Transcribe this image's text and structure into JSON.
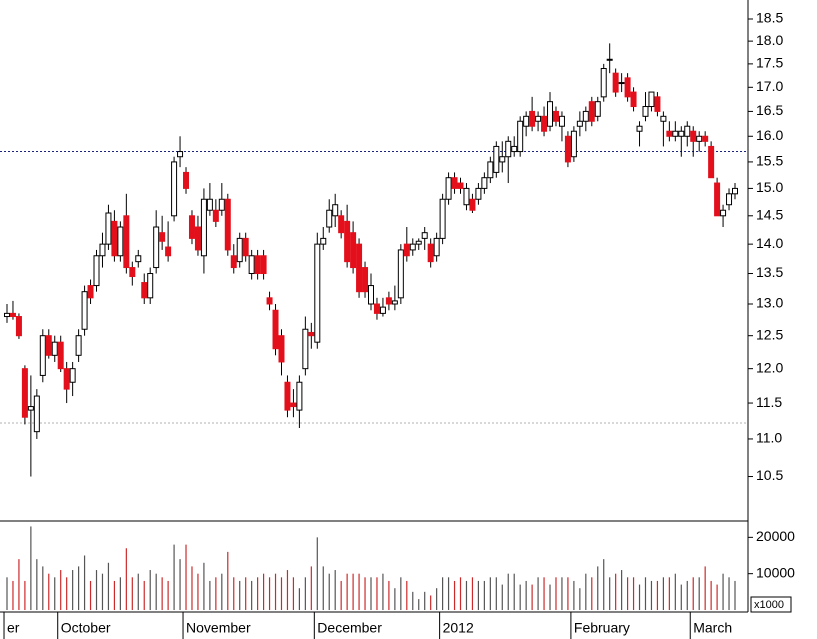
{
  "chart_data": {
    "type": "candlestick",
    "categories": [
      "er",
      null,
      null,
      null,
      null,
      null,
      null,
      null,
      null,
      "October",
      null,
      null,
      null,
      null,
      null,
      null,
      null,
      null,
      null,
      null,
      null,
      null,
      null,
      null,
      null,
      null,
      null,
      null,
      null,
      null,
      "November",
      null,
      null,
      null,
      null,
      null,
      null,
      null,
      null,
      null,
      null,
      null,
      null,
      null,
      null,
      null,
      null,
      null,
      null,
      null,
      null,
      null,
      "December",
      null,
      null,
      null,
      null,
      null,
      null,
      null,
      null,
      null,
      null,
      null,
      null,
      null,
      null,
      null,
      null,
      null,
      null,
      null,
      null,
      "2012",
      null,
      null,
      null,
      null,
      null,
      null,
      null,
      null,
      null,
      null,
      null,
      null,
      null,
      null,
      null,
      null,
      null,
      null,
      null,
      null,
      null,
      "February",
      null,
      null,
      null,
      null,
      null,
      null,
      null,
      null,
      null,
      null,
      null,
      null,
      null,
      null,
      null,
      null,
      null,
      null,
      null,
      "March",
      null,
      null,
      null,
      null,
      null,
      null,
      null
    ],
    "ohlc": [
      [
        12.8,
        13.0,
        12.7,
        12.85
      ],
      [
        12.85,
        13.05,
        12.75,
        12.8
      ],
      [
        12.8,
        12.85,
        12.45,
        12.5
      ],
      [
        12.0,
        12.05,
        11.2,
        11.3
      ],
      [
        11.4,
        11.9,
        10.5,
        11.45
      ],
      [
        11.1,
        11.7,
        11.0,
        11.6
      ],
      [
        11.9,
        12.6,
        11.8,
        12.5
      ],
      [
        12.5,
        12.6,
        12.15,
        12.2
      ],
      [
        12.2,
        12.5,
        12.1,
        12.4
      ],
      [
        12.4,
        12.5,
        11.95,
        12.0
      ],
      [
        12.0,
        12.1,
        11.5,
        11.7
      ],
      [
        11.8,
        12.1,
        11.6,
        12.0
      ],
      [
        12.2,
        12.6,
        12.1,
        12.5
      ],
      [
        12.6,
        13.3,
        12.5,
        13.2
      ],
      [
        13.3,
        13.4,
        13.0,
        13.1
      ],
      [
        13.3,
        13.9,
        13.2,
        13.8
      ],
      [
        13.8,
        14.2,
        13.6,
        14.0
      ],
      [
        14.0,
        14.7,
        13.9,
        14.55
      ],
      [
        14.4,
        14.6,
        13.7,
        13.8
      ],
      [
        13.8,
        14.4,
        13.7,
        14.3
      ],
      [
        14.5,
        14.9,
        13.5,
        13.6
      ],
      [
        13.6,
        13.7,
        13.3,
        13.45
      ],
      [
        13.7,
        13.9,
        13.6,
        13.8
      ],
      [
        13.35,
        13.5,
        13.0,
        13.1
      ],
      [
        13.1,
        13.6,
        13.0,
        13.5
      ],
      [
        13.6,
        14.6,
        13.5,
        14.3
      ],
      [
        14.2,
        14.5,
        13.9,
        14.05
      ],
      [
        13.95,
        14.4,
        13.7,
        13.8
      ],
      [
        14.5,
        15.6,
        14.4,
        15.5
      ],
      [
        15.6,
        16.0,
        15.4,
        15.7
      ],
      [
        15.3,
        15.4,
        14.9,
        15.0
      ],
      [
        14.5,
        14.6,
        14.0,
        14.1
      ],
      [
        14.3,
        14.5,
        13.8,
        13.9
      ],
      [
        13.8,
        15.0,
        13.5,
        14.8
      ],
      [
        14.6,
        15.1,
        14.5,
        14.8
      ],
      [
        14.6,
        14.8,
        14.3,
        14.4
      ],
      [
        14.6,
        15.1,
        14.5,
        14.8
      ],
      [
        14.8,
        14.9,
        13.8,
        13.9
      ],
      [
        13.8,
        14.0,
        13.5,
        13.6
      ],
      [
        13.7,
        14.2,
        13.6,
        14.1
      ],
      [
        14.1,
        14.2,
        13.7,
        13.8
      ],
      [
        13.5,
        13.9,
        13.4,
        13.8
      ],
      [
        13.8,
        13.9,
        13.4,
        13.5
      ],
      [
        13.8,
        13.9,
        13.4,
        13.5
      ],
      [
        13.1,
        13.2,
        12.9,
        13.0
      ],
      [
        12.9,
        13.0,
        12.2,
        12.3
      ],
      [
        12.5,
        12.6,
        11.9,
        12.1
      ],
      [
        11.8,
        11.9,
        11.3,
        11.4
      ],
      [
        11.5,
        11.7,
        11.3,
        11.45
      ],
      [
        11.4,
        11.9,
        11.15,
        11.8
      ],
      [
        12.0,
        12.8,
        11.9,
        12.6
      ],
      [
        12.55,
        12.7,
        12.3,
        12.5
      ],
      [
        12.4,
        14.2,
        12.3,
        14.0
      ],
      [
        14.0,
        14.3,
        13.9,
        14.1
      ],
      [
        14.3,
        14.8,
        14.2,
        14.6
      ],
      [
        14.5,
        14.9,
        14.3,
        14.7
      ],
      [
        14.5,
        14.6,
        14.1,
        14.2
      ],
      [
        14.4,
        14.7,
        13.6,
        13.7
      ],
      [
        14.2,
        14.4,
        13.5,
        13.6
      ],
      [
        14.0,
        14.1,
        13.1,
        13.2
      ],
      [
        13.6,
        13.7,
        13.1,
        13.2
      ],
      [
        13.0,
        13.5,
        12.9,
        13.3
      ],
      [
        13.0,
        13.1,
        12.75,
        12.85
      ],
      [
        12.85,
        13.1,
        12.8,
        12.95
      ],
      [
        13.1,
        13.2,
        12.9,
        13.0
      ],
      [
        13.0,
        13.3,
        12.9,
        13.05
      ],
      [
        13.1,
        14.0,
        13.0,
        13.9
      ],
      [
        14.0,
        14.3,
        13.7,
        13.8
      ],
      [
        13.9,
        14.1,
        13.8,
        14.0
      ],
      [
        14.0,
        14.1,
        13.9,
        14.05
      ],
      [
        14.1,
        14.3,
        13.9,
        14.2
      ],
      [
        14.0,
        14.1,
        13.6,
        13.7
      ],
      [
        13.8,
        14.2,
        13.7,
        14.1
      ],
      [
        14.1,
        14.9,
        14.0,
        14.8
      ],
      [
        14.8,
        15.3,
        14.7,
        15.2
      ],
      [
        15.2,
        15.3,
        14.9,
        15.0
      ],
      [
        15.1,
        15.2,
        14.9,
        15.0
      ],
      [
        14.7,
        15.1,
        14.6,
        15.0
      ],
      [
        14.8,
        14.9,
        14.55,
        14.6
      ],
      [
        14.8,
        15.1,
        14.7,
        15.0
      ],
      [
        15.0,
        15.3,
        14.9,
        15.2
      ],
      [
        15.2,
        15.6,
        15.1,
        15.5
      ],
      [
        15.3,
        15.9,
        15.2,
        15.8
      ],
      [
        15.5,
        15.9,
        15.3,
        15.6
      ],
      [
        15.6,
        16.0,
        15.1,
        15.9
      ],
      [
        15.7,
        16.0,
        15.6,
        15.8
      ],
      [
        15.7,
        16.4,
        15.6,
        16.3
      ],
      [
        16.2,
        16.5,
        16.0,
        16.4
      ],
      [
        16.5,
        16.8,
        16.1,
        16.2
      ],
      [
        16.3,
        16.5,
        16.1,
        16.4
      ],
      [
        16.4,
        16.6,
        16.0,
        16.1
      ],
      [
        16.2,
        16.9,
        16.1,
        16.7
      ],
      [
        16.5,
        16.6,
        16.2,
        16.3
      ],
      [
        16.2,
        16.5,
        15.9,
        16.4
      ],
      [
        16.0,
        16.1,
        15.4,
        15.5
      ],
      [
        15.6,
        16.2,
        15.5,
        16.1
      ],
      [
        16.2,
        16.5,
        16.0,
        16.3
      ],
      [
        16.3,
        16.6,
        16.1,
        16.5
      ],
      [
        16.7,
        16.8,
        16.2,
        16.3
      ],
      [
        16.4,
        16.8,
        16.3,
        16.7
      ],
      [
        16.8,
        17.5,
        16.7,
        17.4
      ],
      [
        17.6,
        17.95,
        17.3,
        17.6
      ],
      [
        17.3,
        17.4,
        16.8,
        16.9
      ],
      [
        17.1,
        17.3,
        16.9,
        17.1
      ],
      [
        17.2,
        17.3,
        16.7,
        16.8
      ],
      [
        16.9,
        17.0,
        16.5,
        16.6
      ],
      [
        16.1,
        16.3,
        15.8,
        16.2
      ],
      [
        16.4,
        16.9,
        16.3,
        16.6
      ],
      [
        16.6,
        16.9,
        16.5,
        16.9
      ],
      [
        16.8,
        16.9,
        16.4,
        16.5
      ],
      [
        16.3,
        16.5,
        15.8,
        16.4
      ],
      [
        16.1,
        16.3,
        15.9,
        16.0
      ],
      [
        16.0,
        16.3,
        15.9,
        16.1
      ],
      [
        16.0,
        16.2,
        15.6,
        16.1
      ],
      [
        16.0,
        16.3,
        15.8,
        16.2
      ],
      [
        16.1,
        16.2,
        15.6,
        15.9
      ],
      [
        15.9,
        16.1,
        15.7,
        16.0
      ],
      [
        16.0,
        16.1,
        15.8,
        15.9
      ],
      [
        15.8,
        15.9,
        15.2,
        15.2
      ],
      [
        15.1,
        15.2,
        14.5,
        14.5
      ],
      [
        14.5,
        14.7,
        14.3,
        14.6
      ],
      [
        14.7,
        15.0,
        14.6,
        14.9
      ],
      [
        14.9,
        15.1,
        14.8,
        15.0
      ]
    ],
    "volume": [
      9000,
      8000,
      14000,
      8000,
      23000,
      14000,
      12000,
      10000,
      9000,
      11000,
      9000,
      11000,
      12000,
      15000,
      8000,
      11000,
      10000,
      13000,
      8000,
      9000,
      17000,
      9000,
      10000,
      8000,
      11000,
      10000,
      9000,
      8000,
      18000,
      14000,
      18000,
      12000,
      10000,
      13000,
      8000,
      9000,
      10000,
      16000,
      9000,
      8000,
      9000,
      8000,
      9000,
      10000,
      9000,
      10000,
      9000,
      11000,
      9000,
      6000,
      9000,
      12000,
      20000,
      12000,
      10000,
      11000,
      8000,
      10000,
      10000,
      10000,
      9000,
      9000,
      9000,
      10000,
      8000,
      6000,
      9000,
      8000,
      5000,
      3000,
      5000,
      4000,
      6000,
      9000,
      9000,
      8000,
      9000,
      8000,
      9000,
      8000,
      8000,
      9000,
      9000,
      7000,
      10000,
      10000,
      7000,
      8000,
      7000,
      9000,
      9000,
      7000,
      9000,
      9000,
      9000,
      8000,
      6000,
      10000,
      9000,
      12000,
      14000,
      9000,
      10000,
      11000,
      9000,
      9000,
      7000,
      9000,
      8000,
      8000,
      9000,
      9000,
      10000,
      7000,
      8000,
      9000,
      9000,
      12000,
      8000,
      7000,
      10000,
      9000,
      8000
    ],
    "ylim": [
      9.95,
      18.94
    ],
    "log_scale": true,
    "yticks": [
      10.5,
      {
        "value": 11,
        "label": "11.0"
      },
      11.5,
      {
        "value": 12,
        "label": "12.0"
      },
      12.5,
      {
        "value": 13,
        "label": "13.0"
      },
      13.5,
      {
        "value": 14,
        "label": "14.0"
      },
      14.5,
      {
        "value": 15,
        "label": "15.0"
      },
      15.5,
      {
        "value": 16,
        "label": "16.0"
      },
      16.5,
      {
        "value": 17,
        "label": "17.0"
      },
      17.5,
      {
        "value": 18,
        "label": "18.0"
      },
      18.5
    ],
    "volume_lim": [
      0,
      24500
    ],
    "volume_ticks": [
      10000,
      20000
    ],
    "volume_unit": "x1000",
    "reference_lines": [
      {
        "value": 15.7,
        "color": "#1a237e"
      },
      {
        "value": 11.22,
        "color": "#b0b0b0"
      }
    ],
    "up_color": "#ffffff",
    "down_color": "#e3101c",
    "volume_up_color": "#555555",
    "volume_down_color": "#cc2a2a"
  }
}
